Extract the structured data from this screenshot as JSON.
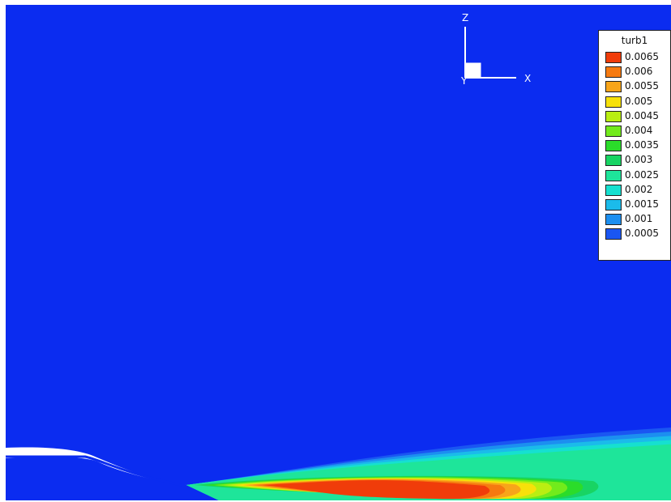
{
  "chart_data": {
    "type": "heatmap",
    "variable": "turb1",
    "background_color": "#0b2cf0",
    "legend": {
      "title": "turb1",
      "placement": "top-right",
      "levels": [
        {
          "label": "0.0065",
          "color": "#f03c0a"
        },
        {
          "label": "0.006",
          "color": "#f67a10"
        },
        {
          "label": "0.0055",
          "color": "#f8a51a"
        },
        {
          "label": "0.005",
          "color": "#f7e10a"
        },
        {
          "label": "0.0045",
          "color": "#b9ee12"
        },
        {
          "label": "0.004",
          "color": "#72eb1c"
        },
        {
          "label": "0.0035",
          "color": "#2bdc2a"
        },
        {
          "label": "0.003",
          "color": "#18d463"
        },
        {
          "label": "0.0025",
          "color": "#1ee59a"
        },
        {
          "label": "0.002",
          "color": "#16e0d0"
        },
        {
          "label": "0.0015",
          "color": "#1bbbea"
        },
        {
          "label": "0.001",
          "color": "#1c8ff0"
        },
        {
          "label": "0.0005",
          "color": "#1a56f2"
        },
        {
          "label": "",
          "color": "#0b2cf0"
        }
      ]
    },
    "axes_labels": {
      "x": "X",
      "z": "Z",
      "y": "Y"
    }
  }
}
